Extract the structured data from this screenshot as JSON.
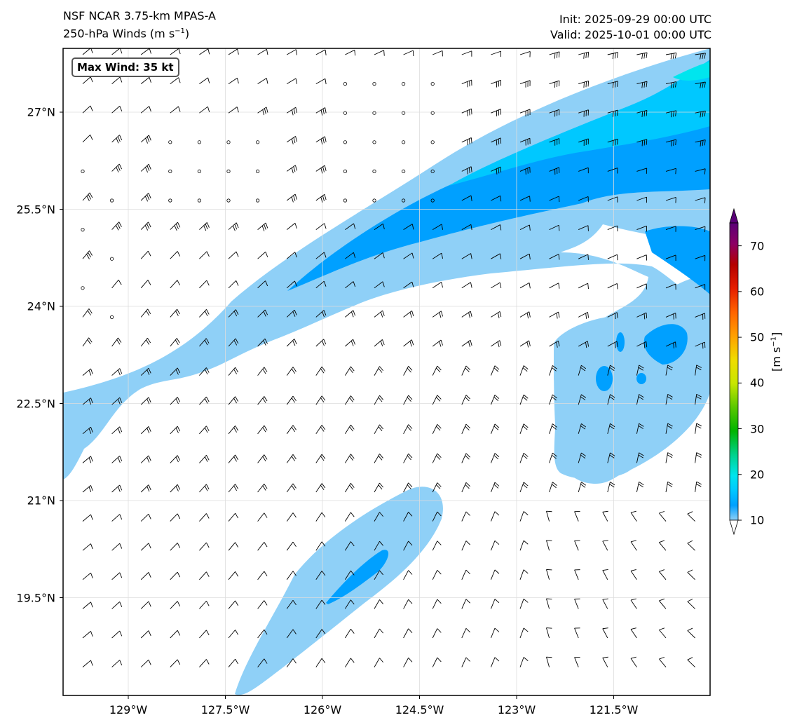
{
  "header": {
    "model": "NSF NCAR 3.75-km MPAS-A",
    "field": "250-hPa Winds (m s",
    "field_exp": "−1",
    "field_close": ")",
    "init": "Init: 2025-09-29 00:00 UTC",
    "valid": "Valid: 2025-10-01 00:00 UTC"
  },
  "map": {
    "max_wind": "Max Wind: 35 kt",
    "lat_labels": [
      "27°N",
      "25.5°N",
      "24°N",
      "22.5°N",
      "21°N",
      "19.5°N"
    ],
    "lon_labels": [
      "129°W",
      "127.5°W",
      "126°W",
      "124.5°W",
      "123°W",
      "121.5°W"
    ]
  },
  "colorbar": {
    "unit_prefix": "[m s",
    "unit_exp": "−1",
    "unit_suffix": "]",
    "ticks": [
      "10",
      "20",
      "30",
      "40",
      "50",
      "60",
      "70"
    ],
    "colors": [
      "#8fd0f7",
      "#00a0ff",
      "#00c8ff",
      "#00e5ee",
      "#00d28c",
      "#00b400",
      "#5ac800",
      "#c8e600",
      "#f0dc00",
      "#ffa000",
      "#ff6400",
      "#e61e00",
      "#b40000",
      "#8c0064",
      "#5a0078"
    ]
  },
  "chart_data": {
    "type": "heatmap",
    "title": "250-hPa Winds (m s−1)",
    "colorbar_range": [
      10,
      75
    ],
    "max_wind_kt": 35,
    "lat_ticks": [
      27,
      25.5,
      24,
      22.5,
      21,
      19.5
    ],
    "lon_ticks": [
      -129,
      -127.5,
      -126,
      -124.5,
      -123,
      -121.5
    ]
  }
}
